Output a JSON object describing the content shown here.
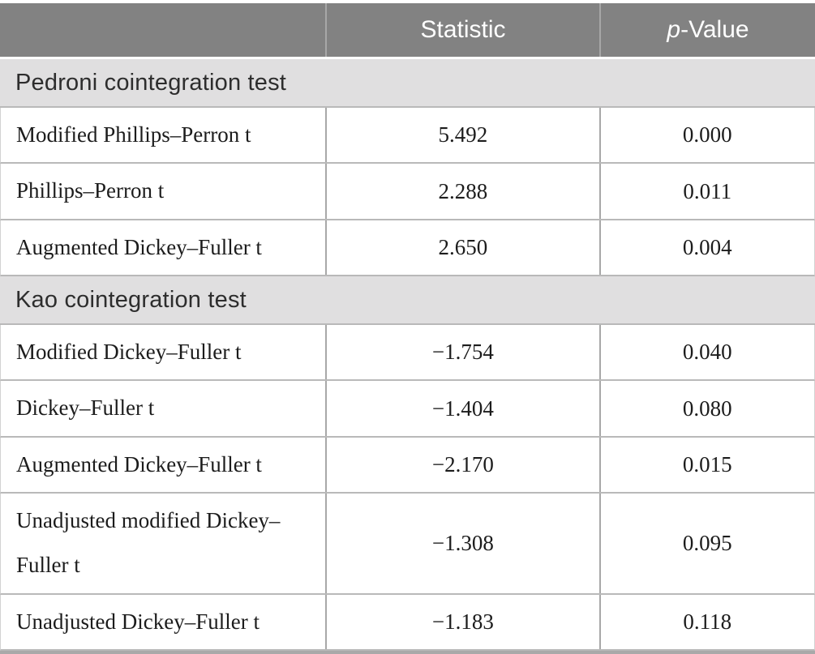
{
  "table": {
    "header": {
      "col1": "",
      "col2": "Statistic",
      "p_italic": "p",
      "p_rest": "-Value"
    },
    "sections": [
      {
        "title": "Pedroni cointegration test",
        "rows": [
          {
            "label": "Modified Phillips–Perron t",
            "statistic": "5.492",
            "p_value": "0.000"
          },
          {
            "label": "Phillips–Perron t",
            "statistic": "2.288",
            "p_value": "0.011"
          },
          {
            "label": "Augmented Dickey–Fuller t",
            "statistic": "2.650",
            "p_value": "0.004"
          }
        ]
      },
      {
        "title": "Kao cointegration test",
        "rows": [
          {
            "label": "Modified Dickey–Fuller t",
            "statistic": "−1.754",
            "p_value": "0.040"
          },
          {
            "label": "Dickey–Fuller t",
            "statistic": "−1.404",
            "p_value": "0.080"
          },
          {
            "label": "Augmented Dickey–Fuller t",
            "statistic": "−2.170",
            "p_value": "0.015"
          },
          {
            "label": "Unadjusted modified Dickey–Fuller t",
            "statistic": "−1.308",
            "p_value": "0.095"
          },
          {
            "label": "Unadjusted Dickey–Fuller t",
            "statistic": "−1.183",
            "p_value": "0.118"
          }
        ]
      }
    ]
  },
  "theme": {
    "header_bg": "#828282",
    "header_text": "#ffffff",
    "section_bg": "#e0dfe0",
    "section_text": "#2d2d2d",
    "row_text": "#1c1c1c",
    "grid_line": "#b9b9b9",
    "cell_divider": "#a8a8a8",
    "bottom_rule": "#a9a9a9"
  }
}
